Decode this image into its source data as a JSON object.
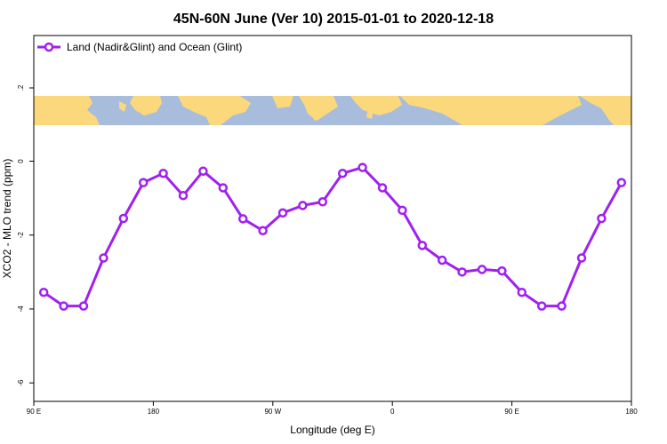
{
  "chart_data": {
    "type": "line",
    "title": "45N-60N June (Ver 10)   2015-01-01 to 2020-12-18",
    "xlabel": "Longitude (deg E)",
    "ylabel": "XCO2 - MLO trend (ppm)",
    "x_ticks": [
      {
        "value": 90,
        "label": "90 E"
      },
      {
        "value": 180,
        "label": "180"
      },
      {
        "value": 270,
        "label": "90 W"
      },
      {
        "value": 360,
        "label": "0"
      },
      {
        "value": 450,
        "label": "90 E"
      },
      {
        "value": 540,
        "label": "180"
      }
    ],
    "y_ticks": [
      {
        "value": 0,
        "label": "0"
      },
      {
        "value": -2,
        "label": "-2"
      },
      {
        "value": -4,
        "label": "-4"
      },
      {
        "value": -6,
        "label": "-6"
      }
    ],
    "band_tick": {
      "label": ".2"
    },
    "xlim": [
      90,
      540
    ],
    "ylim": [
      -6.5,
      3.4
    ],
    "legend_position": "top-left",
    "grid": false,
    "map_strip": {
      "ocean_color": "#a8bcdc",
      "land_color": "#fcd87c"
    },
    "series": [
      {
        "name": "Land (Nadir&Glint) and Ocean (Glint)",
        "color": "#a020f0",
        "x": [
          97.5,
          112.5,
          127.5,
          142.5,
          157.5,
          172.5,
          187.5,
          202.5,
          217.5,
          232.5,
          247.5,
          262.5,
          277.5,
          292.5,
          307.5,
          322.5,
          337.5,
          352.5,
          367.5,
          382.5,
          397.5,
          412.5,
          427.5,
          442.5,
          457.5,
          472.5,
          487.5,
          502.5,
          517.5,
          532.5
        ],
        "y": [
          -3.55,
          -3.92,
          -3.92,
          -2.62,
          -1.55,
          -0.58,
          -0.33,
          -0.93,
          -0.27,
          -0.72,
          -1.56,
          -1.88,
          -1.4,
          -1.2,
          -1.1,
          -0.33,
          -0.17,
          -0.72,
          -1.33,
          -2.28,
          -2.68,
          -3.0,
          -2.93,
          -2.97,
          -3.55,
          -3.92,
          -3.92,
          -2.62,
          -1.55,
          -0.58
        ]
      }
    ]
  }
}
